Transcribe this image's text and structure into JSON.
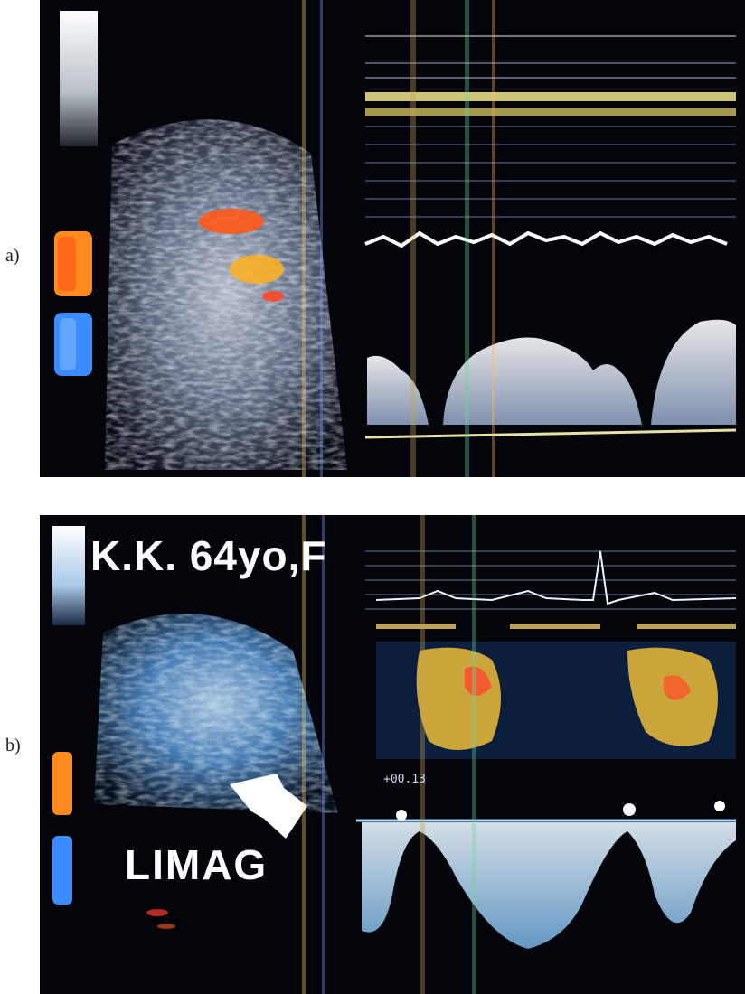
{
  "panels": [
    {
      "label": "a)"
    },
    {
      "label": "b)",
      "patient_label": "K.K. 64yo,F",
      "annotation": "LIMAG",
      "readout": "+00.13"
    }
  ],
  "colors": {
    "background": "#04050a",
    "doppler": "#e8eef8",
    "panel_b_tint": "#7fc3ff",
    "color_flow_red": "#ff5a1a",
    "color_flow_yellow": "#ffd23a",
    "colorbar_orange": "#ff8a1e",
    "colorbar_blue": "#3a8cff"
  }
}
